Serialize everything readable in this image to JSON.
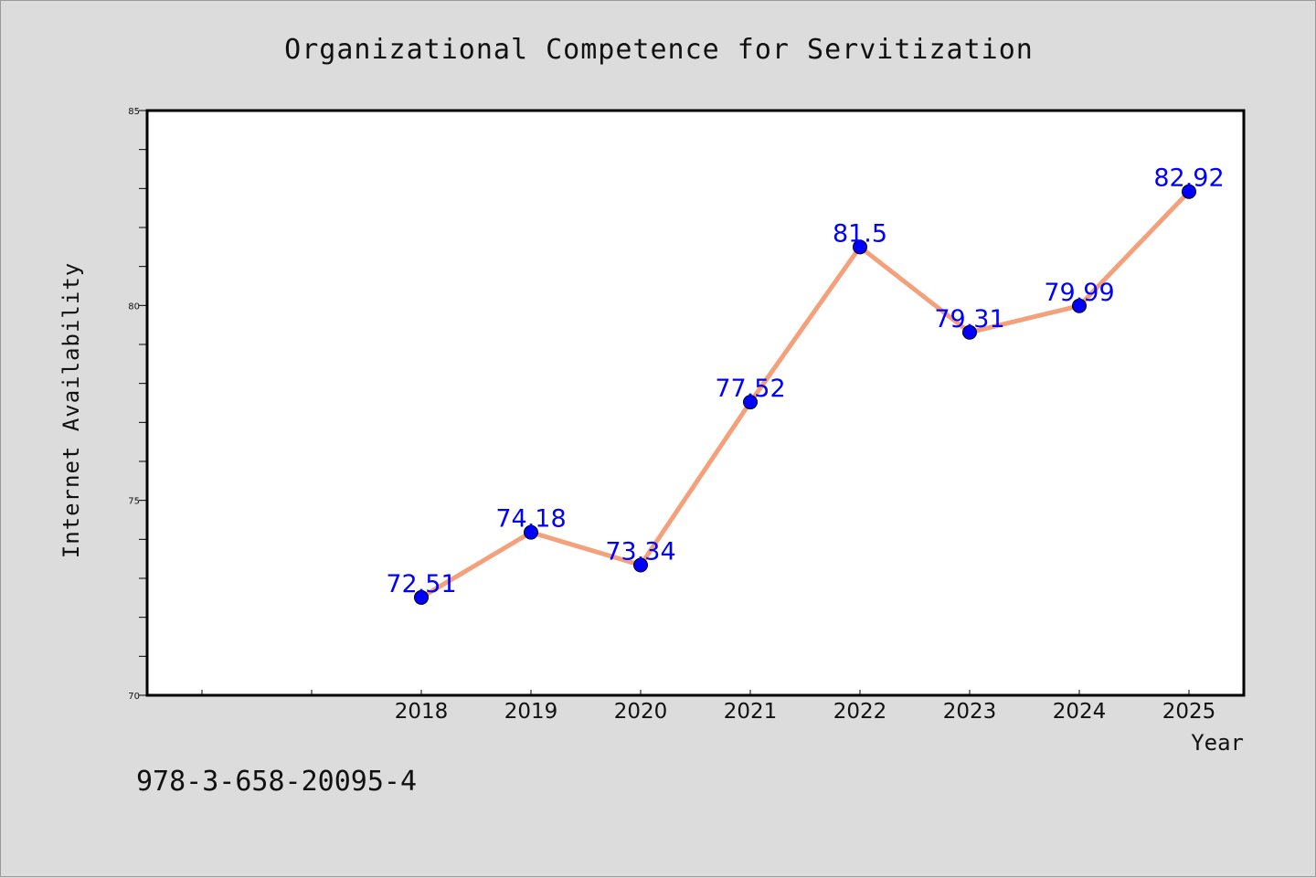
{
  "chart_data": {
    "type": "line",
    "title": "Organizational Competence for Servitization",
    "xlabel": "Year",
    "ylabel": "Internet Availability",
    "categories": [
      "2018",
      "2019",
      "2020",
      "2021",
      "2022",
      "2023",
      "2024",
      "2025"
    ],
    "series": [
      {
        "values": [
          72.51,
          74.18,
          73.34,
          77.52,
          81.5,
          79.31,
          79.99,
          82.92
        ]
      }
    ],
    "data_labels": [
      "72.51",
      "74.18",
      "73.34",
      "77.52",
      "81.5",
      "79.31",
      "79.99",
      "82.92"
    ],
    "ylim": [
      70,
      85
    ],
    "yticks": [
      "70",
      "75",
      "80",
      "85"
    ],
    "grid": false,
    "colors": {
      "line": "#f4a07a",
      "marker": "#0000ff",
      "label": "#0000ff",
      "background": "#dcdcdc",
      "plot_bg": "#ffffff"
    }
  },
  "footer": {
    "isbn": "978-3-658-20095-4"
  }
}
